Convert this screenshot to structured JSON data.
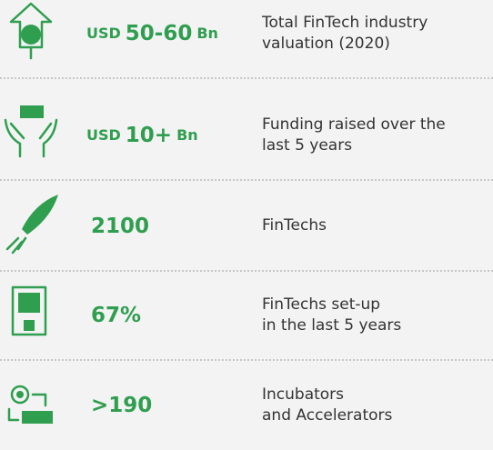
{
  "stats": [
    {
      "prefix": "USD",
      "value": "50-60",
      "suffix": "Bn",
      "lines": [
        "Total FinTech industry",
        "valuation (2020)"
      ]
    },
    {
      "prefix": "USD",
      "value": "10+",
      "suffix": "Bn",
      "lines": [
        "Funding raised over the",
        "last 5 years"
      ]
    },
    {
      "value": "2100",
      "lines": [
        "FinTechs"
      ]
    },
    {
      "value": "67%",
      "lines": [
        "FinTechs set-up",
        "in the last 5 years"
      ]
    },
    {
      "value": ">190",
      "lines": [
        "Incubators",
        "and Accelerators"
      ]
    }
  ]
}
